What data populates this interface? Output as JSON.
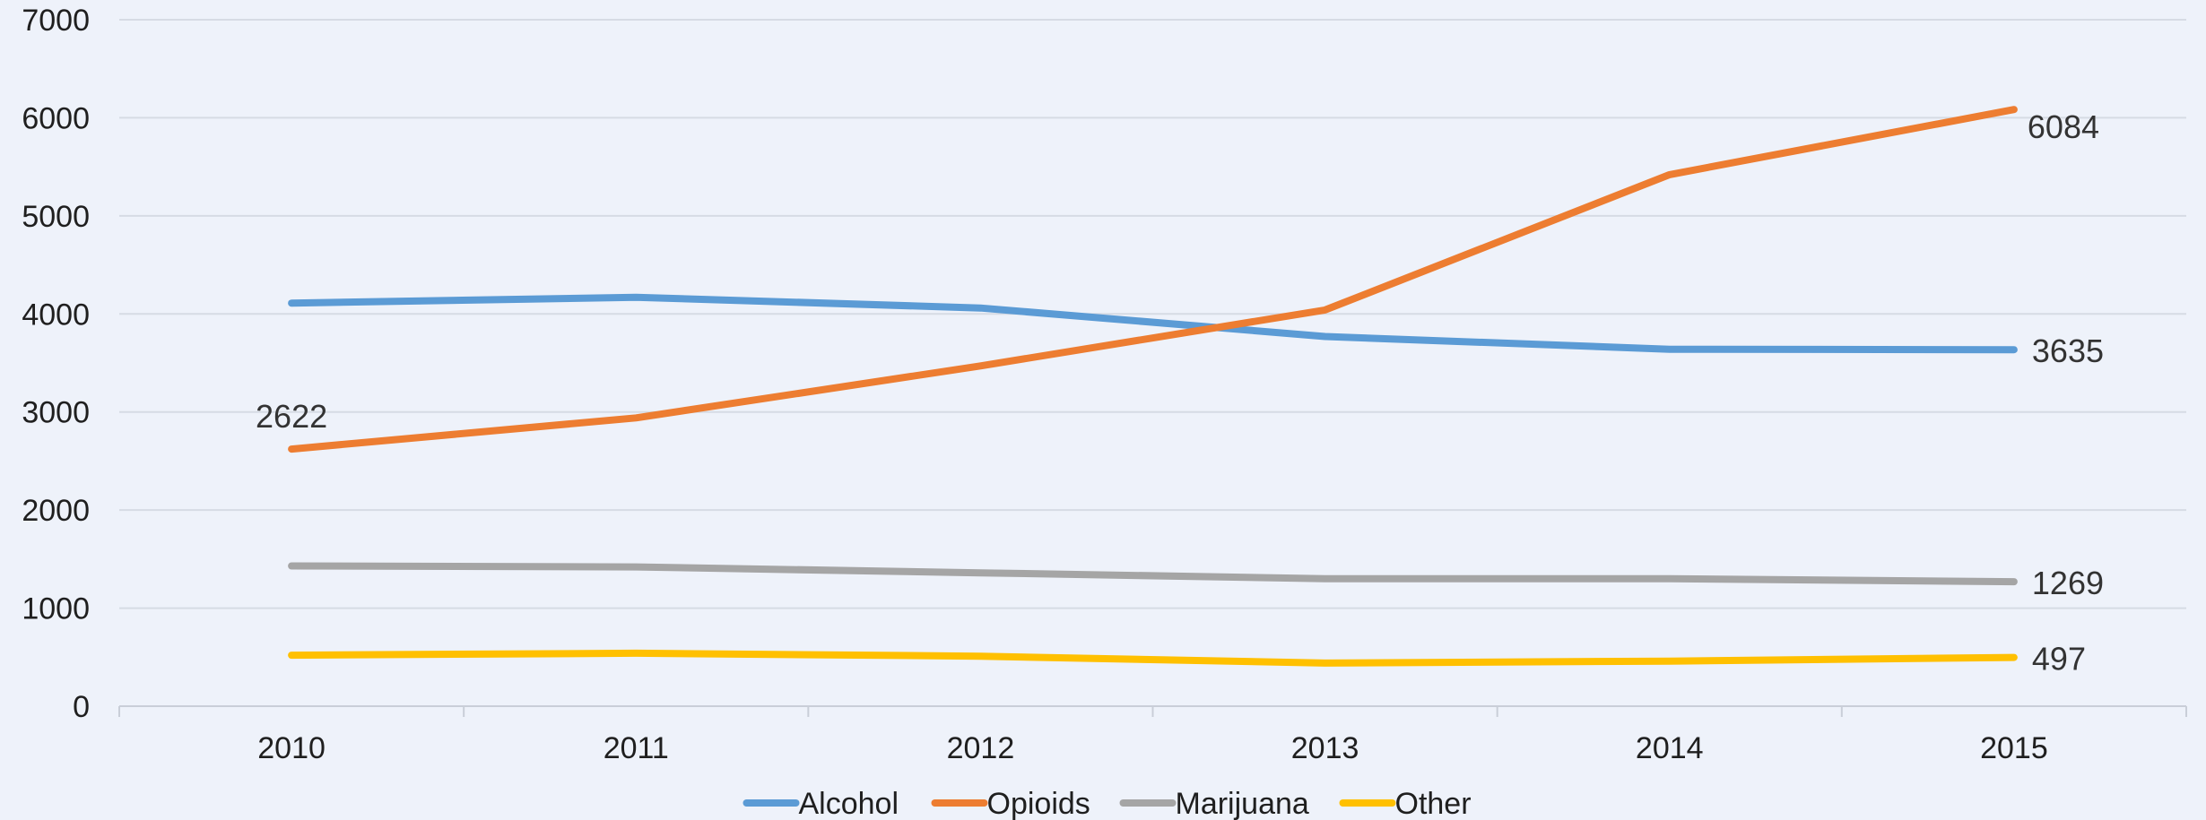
{
  "chart_data": {
    "type": "line",
    "categories": [
      "2010",
      "2011",
      "2012",
      "2013",
      "2014",
      "2015"
    ],
    "ylim": [
      0,
      7000
    ],
    "yticks": [
      0,
      1000,
      2000,
      3000,
      4000,
      5000,
      6000,
      7000
    ],
    "grid": true,
    "legend_position": "bottom",
    "series": [
      {
        "name": "Alcohol",
        "color": "#5b9bd5",
        "values": [
          4110,
          4170,
          4060,
          3770,
          3640,
          3635
        ],
        "labels": [
          {
            "index": 5,
            "text": "3635"
          }
        ]
      },
      {
        "name": "Opioids",
        "color": "#ed7d31",
        "values": [
          2622,
          2940,
          3470,
          4040,
          5420,
          6084
        ],
        "labels": [
          {
            "index": 0,
            "text": "2622"
          },
          {
            "index": 5,
            "text": "6084"
          }
        ]
      },
      {
        "name": "Marijuana",
        "color": "#a5a5a5",
        "values": [
          1430,
          1420,
          1360,
          1300,
          1300,
          1269
        ],
        "labels": [
          {
            "index": 5,
            "text": "1269"
          }
        ]
      },
      {
        "name": "Other",
        "color": "#ffc000",
        "values": [
          520,
          540,
          510,
          440,
          460,
          497
        ],
        "labels": [
          {
            "index": 5,
            "text": "497"
          }
        ]
      }
    ]
  }
}
